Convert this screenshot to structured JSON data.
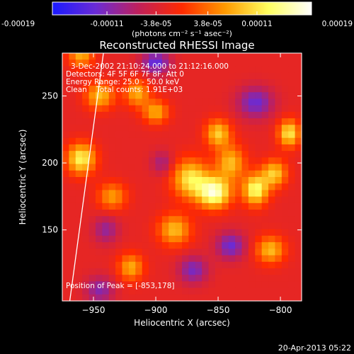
{
  "colorbar": {
    "tick_labels": [
      "-0.00019",
      "-0.00011",
      "-3.8e-05",
      "3.8e-05",
      "0.00011",
      "0.00019"
    ],
    "tick_values": [
      -0.00019,
      -0.00011,
      -3.8e-05,
      3.8e-05,
      0.00011,
      0.00019
    ],
    "range": [
      -0.00019,
      0.00019
    ],
    "units_label": "(photons cm⁻² s⁻¹ asec⁻²)",
    "colors": [
      "#1a1aff",
      "#6a2bd6",
      "#c0205a",
      "#ff2a00",
      "#ff9a00",
      "#ffff60",
      "#ffffff"
    ]
  },
  "chart_data": {
    "type": "heatmap",
    "title": "Reconstructed RHESSI Image",
    "xlabel": "Heliocentric X (arcsec)",
    "ylabel": "Heliocentric Y (arcsec)",
    "xlim": [
      -975,
      -783
    ],
    "ylim": [
      97,
      282
    ],
    "x_ticks": [
      -950,
      -900,
      -850,
      -800
    ],
    "y_ticks": [
      150,
      200,
      250
    ],
    "x_tick_labels": [
      "−950",
      "−900",
      "−850",
      "−800"
    ],
    "y_tick_labels": [
      "150",
      "200",
      "250"
    ],
    "annotations": [
      "3-Dec-2002 21:10:24.000 to 21:12:16.000",
      "Detectors: 4F 5F 6F 7F 8F, Att 0",
      "Energy Range: 25.0 - 50.0 keV",
      "Clean    Total counts: 1.91E+03"
    ],
    "peak_label": "Position of Peak = [-853,178]",
    "peak": [
      -853,
      178
    ],
    "limb": {
      "x_at_ymin": -969,
      "x_at_ymax": -942
    },
    "sources": [
      {
        "x": -853,
        "y": 178,
        "sx": 9,
        "sy": 8,
        "amp": 0.00019
      },
      {
        "x": -872,
        "y": 188,
        "sx": 10,
        "sy": 10,
        "amp": 0.00014
      },
      {
        "x": -840,
        "y": 200,
        "sx": 8,
        "sy": 9,
        "amp": 0.00011
      },
      {
        "x": -885,
        "y": 150,
        "sx": 9,
        "sy": 8,
        "amp": 0.00011
      },
      {
        "x": -960,
        "y": 203,
        "sx": 8,
        "sy": 8,
        "amp": 0.00015
      },
      {
        "x": -945,
        "y": 250,
        "sx": 8,
        "sy": 7,
        "amp": 0.00011
      },
      {
        "x": -915,
        "y": 252,
        "sx": 7,
        "sy": 7,
        "amp": 0.0001
      },
      {
        "x": -900,
        "y": 238,
        "sx": 7,
        "sy": 6,
        "amp": 0.0001
      },
      {
        "x": -850,
        "y": 222,
        "sx": 7,
        "sy": 7,
        "amp": 0.00012
      },
      {
        "x": -820,
        "y": 180,
        "sx": 7,
        "sy": 8,
        "amp": 0.00016
      },
      {
        "x": -805,
        "y": 192,
        "sx": 7,
        "sy": 7,
        "amp": 0.00012
      },
      {
        "x": -808,
        "y": 135,
        "sx": 8,
        "sy": 7,
        "amp": 0.00011
      },
      {
        "x": -920,
        "y": 122,
        "sx": 7,
        "sy": 7,
        "amp": 0.0001
      },
      {
        "x": -935,
        "y": 175,
        "sx": 8,
        "sy": 7,
        "amp": 9e-05
      },
      {
        "x": -793,
        "y": 222,
        "sx": 6,
        "sy": 7,
        "amp": 0.00014
      },
      {
        "x": -960,
        "y": 280,
        "sx": 7,
        "sy": 6,
        "amp": 0.0001
      },
      {
        "x": -900,
        "y": 275,
        "sx": 8,
        "sy": 6,
        "amp": -0.00011
      },
      {
        "x": -820,
        "y": 245,
        "sx": 10,
        "sy": 8,
        "amp": -0.0001
      },
      {
        "x": -870,
        "y": 120,
        "sx": 8,
        "sy": 7,
        "amp": -9e-05
      },
      {
        "x": -840,
        "y": 138,
        "sx": 8,
        "sy": 7,
        "amp": -0.0001
      },
      {
        "x": -940,
        "y": 150,
        "sx": 7,
        "sy": 7,
        "amp": -7e-05
      },
      {
        "x": -945,
        "y": 105,
        "sx": 8,
        "sy": 7,
        "amp": -8e-05
      },
      {
        "x": -895,
        "y": 200,
        "sx": 6,
        "sy": 6,
        "amp": -6e-05
      }
    ]
  },
  "footer": {
    "timestamp": "20-Apr-2013 05:22"
  }
}
